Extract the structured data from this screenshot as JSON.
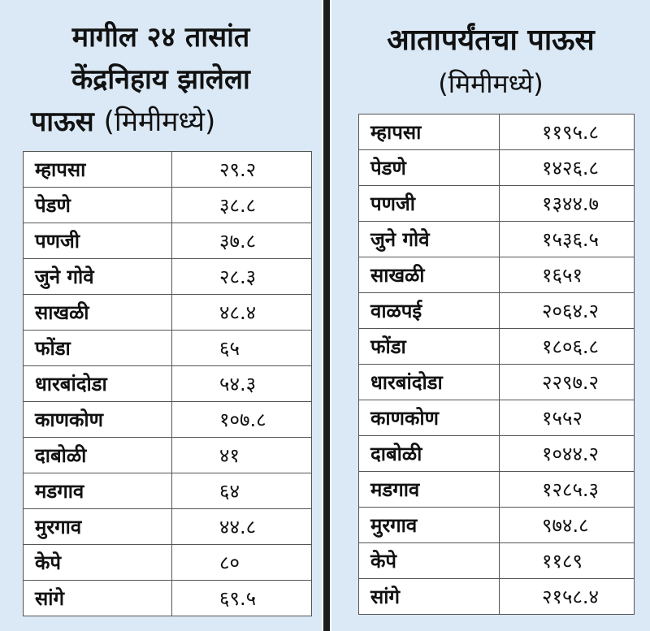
{
  "left": {
    "title_line1": "मागील २४ तासांत",
    "title_line2": "केंद्रनिहाय झालेला",
    "title_line3": "पाऊस",
    "unit": "(मिमीमध्ये)",
    "rows": [
      {
        "place": "म्हापसा",
        "value": "२९.२"
      },
      {
        "place": "पेडणे",
        "value": "३८.८"
      },
      {
        "place": "पणजी",
        "value": "३७.८"
      },
      {
        "place": "जुने गोवे",
        "value": "२८.३"
      },
      {
        "place": "साखळी",
        "value": "४८.४"
      },
      {
        "place": "फोंडा",
        "value": "६५"
      },
      {
        "place": "धारबांदोडा",
        "value": "५४.३"
      },
      {
        "place": "काणकोण",
        "value": "१०७.८"
      },
      {
        "place": "दाबोळी",
        "value": "४१"
      },
      {
        "place": "मडगाव",
        "value": "६४"
      },
      {
        "place": "मुरगाव",
        "value": "४४.८"
      },
      {
        "place": "केपे",
        "value": "८०"
      },
      {
        "place": "सांगे",
        "value": "६९.५"
      }
    ]
  },
  "right": {
    "title_line1": "आतापर्यंतचा पाऊस",
    "unit": "(मिमीमध्ये)",
    "rows": [
      {
        "place": "म्हापसा",
        "value": "११९५.८"
      },
      {
        "place": "पेडणे",
        "value": "१४२६.८"
      },
      {
        "place": "पणजी",
        "value": "१३४४.७"
      },
      {
        "place": "जुने गोवे",
        "value": "१५३६.५"
      },
      {
        "place": "साखळी",
        "value": "१६५१"
      },
      {
        "place": "वाळपई",
        "value": "२०६४.२"
      },
      {
        "place": "फोंडा",
        "value": "१८०६.८"
      },
      {
        "place": "धारबांदोडा",
        "value": "२२९७.२"
      },
      {
        "place": "काणकोण",
        "value": "१५५२"
      },
      {
        "place": "दाबोळी",
        "value": "१०४४.२"
      },
      {
        "place": "मडगाव",
        "value": "१२८५.३"
      },
      {
        "place": "मुरगाव",
        "value": "९७४.८"
      },
      {
        "place": "केपे",
        "value": "११८९"
      },
      {
        "place": "सांगे",
        "value": "२१५८.४"
      }
    ]
  }
}
